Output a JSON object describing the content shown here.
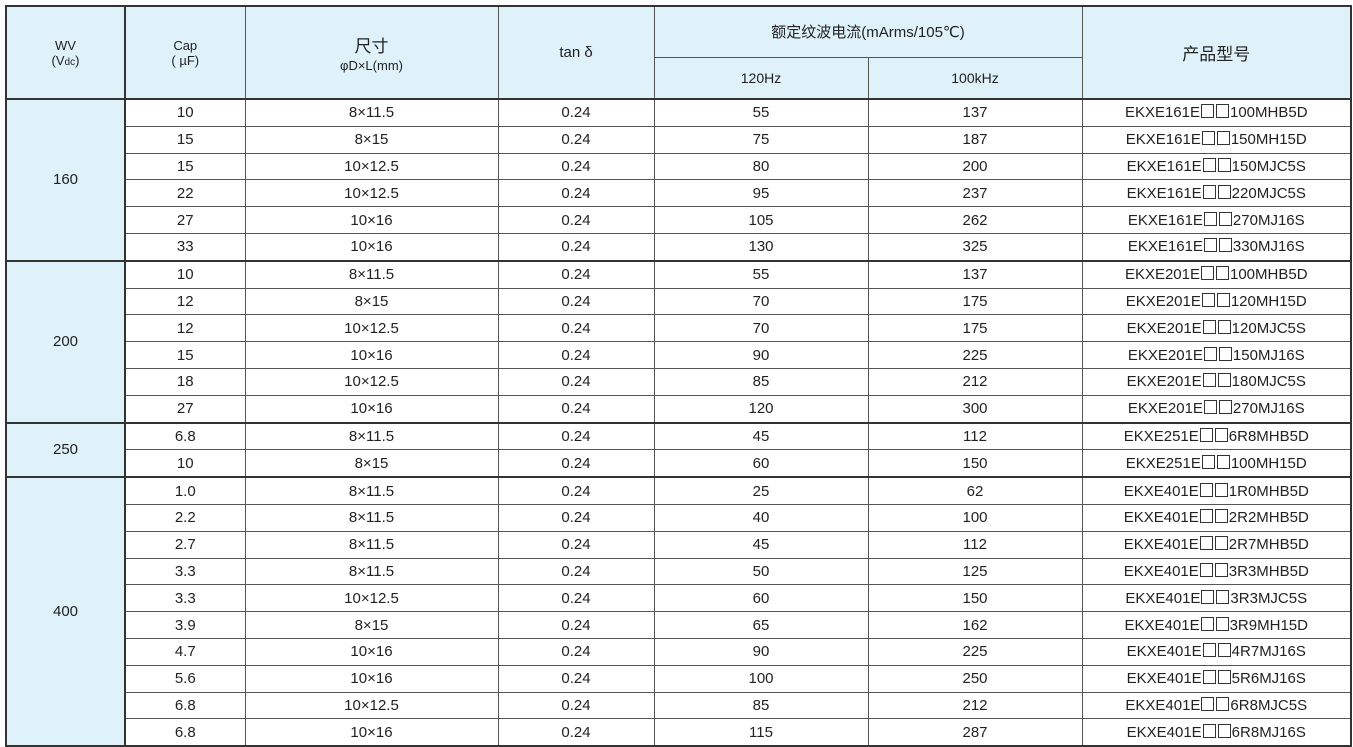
{
  "header": {
    "wv": "WV",
    "wv_unit_open": "(V",
    "wv_unit_sub": "dc",
    "wv_unit_close": ")",
    "cap": "Cap",
    "cap_unit": "( µF)",
    "size": "尺寸",
    "size_unit": "φD×L(mm)",
    "tan": "tan δ",
    "ripple": "额定纹波电流(mArms/105℃)",
    "f1": "120Hz",
    "f2": "100kHz",
    "part": "产品型号"
  },
  "groups": [
    {
      "wv": "160",
      "rows": [
        [
          "10",
          "8×11.5",
          "0.24",
          "55",
          "137",
          "EKXE161E",
          "100MHB5D"
        ],
        [
          "15",
          "8×15",
          "0.24",
          "75",
          "187",
          "EKXE161E",
          "150MH15D"
        ],
        [
          "15",
          "10×12.5",
          "0.24",
          "80",
          "200",
          "EKXE161E",
          "150MJC5S"
        ],
        [
          "22",
          "10×12.5",
          "0.24",
          "95",
          "237",
          "EKXE161E",
          "220MJC5S"
        ],
        [
          "27",
          "10×16",
          "0.24",
          "105",
          "262",
          "EKXE161E",
          "270MJ16S"
        ],
        [
          "33",
          "10×16",
          "0.24",
          "130",
          "325",
          "EKXE161E",
          "330MJ16S"
        ]
      ]
    },
    {
      "wv": "200",
      "rows": [
        [
          "10",
          "8×11.5",
          "0.24",
          "55",
          "137",
          "EKXE201E",
          "100MHB5D"
        ],
        [
          "12",
          "8×15",
          "0.24",
          "70",
          "175",
          "EKXE201E",
          "120MH15D"
        ],
        [
          "12",
          "10×12.5",
          "0.24",
          "70",
          "175",
          "EKXE201E",
          "120MJC5S"
        ],
        [
          "15",
          "10×16",
          "0.24",
          "90",
          "225",
          "EKXE201E",
          "150MJ16S"
        ],
        [
          "18",
          "10×12.5",
          "0.24",
          "85",
          "212",
          "EKXE201E",
          "180MJC5S"
        ],
        [
          "27",
          "10×16",
          "0.24",
          "120",
          "300",
          "EKXE201E",
          "270MJ16S"
        ]
      ]
    },
    {
      "wv": "250",
      "rows": [
        [
          "6.8",
          "8×11.5",
          "0.24",
          "45",
          "112",
          "EKXE251E",
          "6R8MHB5D"
        ],
        [
          "10",
          "8×15",
          "0.24",
          "60",
          "150",
          "EKXE251E",
          "100MH15D"
        ]
      ]
    },
    {
      "wv": "400",
      "rows": [
        [
          "1.0",
          "8×11.5",
          "0.24",
          "25",
          "62",
          "EKXE401E",
          "1R0MHB5D"
        ],
        [
          "2.2",
          "8×11.5",
          "0.24",
          "40",
          "100",
          "EKXE401E",
          "2R2MHB5D"
        ],
        [
          "2.7",
          "8×11.5",
          "0.24",
          "45",
          "112",
          "EKXE401E",
          "2R7MHB5D"
        ],
        [
          "3.3",
          "8×11.5",
          "0.24",
          "50",
          "125",
          "EKXE401E",
          "3R3MHB5D"
        ],
        [
          "3.3",
          "10×12.5",
          "0.24",
          "60",
          "150",
          "EKXE401E",
          "3R3MJC5S"
        ],
        [
          "3.9",
          "8×15",
          "0.24",
          "65",
          "162",
          "EKXE401E",
          "3R9MH15D"
        ],
        [
          "4.7",
          "10×16",
          "0.24",
          "90",
          "225",
          "EKXE401E",
          "4R7MJ16S"
        ],
        [
          "5.6",
          "10×16",
          "0.24",
          "100",
          "250",
          "EKXE401E",
          "5R6MJ16S"
        ],
        [
          "6.8",
          "10×12.5",
          "0.24",
          "85",
          "212",
          "EKXE401E",
          "6R8MJC5S"
        ],
        [
          "6.8",
          "10×16",
          "0.24",
          "115",
          "287",
          "EKXE401E",
          "6R8MJ16S"
        ]
      ]
    }
  ]
}
